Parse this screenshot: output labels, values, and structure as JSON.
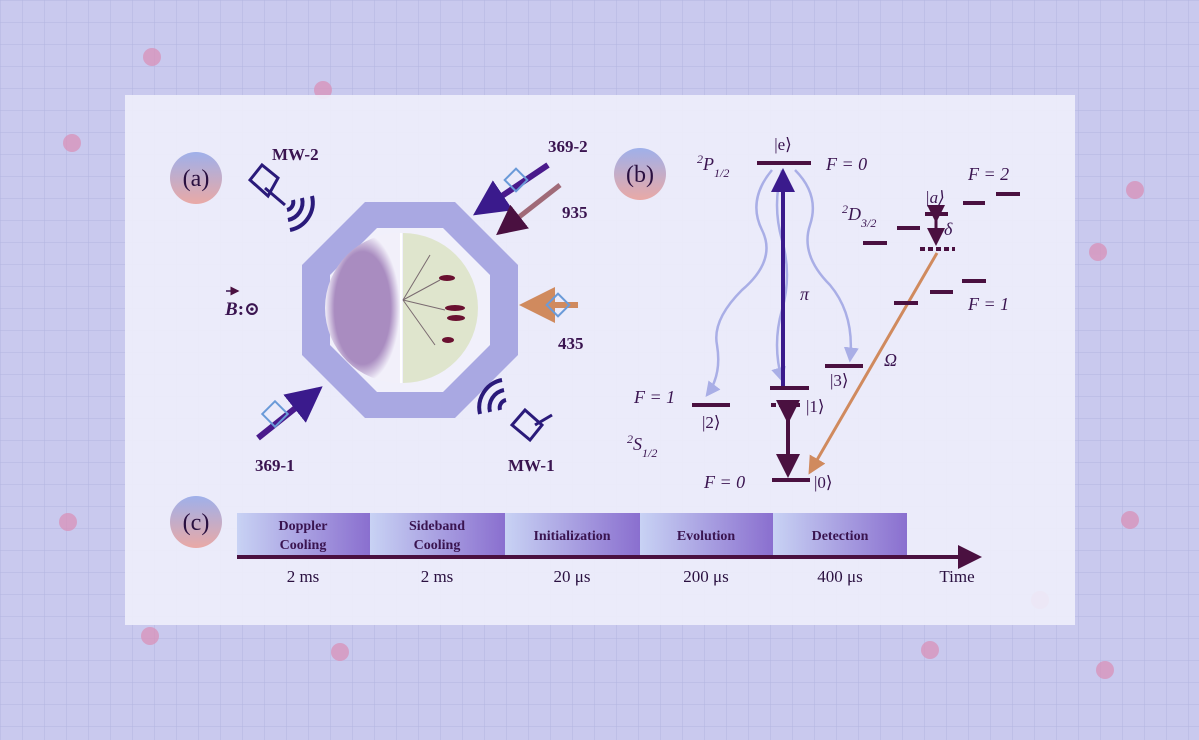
{
  "panel_a": {
    "tag": "(a)",
    "mw2": "MW-2",
    "mw1": "MW-1",
    "beam_369_2": "369-2",
    "beam_935": "935",
    "beam_435": "435",
    "beam_369_1": "369-1",
    "b_field": {
      "symbol": "B",
      "suffix": ":⊙"
    }
  },
  "panel_b": {
    "tag": "(b)",
    "p_term": {
      "sup": "2",
      "main": "P",
      "sub": "1/2"
    },
    "s_term": {
      "sup": "2",
      "main": "S",
      "sub": "1/2"
    },
    "d_term": {
      "sup": "2",
      "main": "D",
      "sub": "3/2"
    },
    "ket_e": "|e⟩",
    "ket_0": "|0⟩",
    "ket_1": "|1⟩",
    "ket_2": "|2⟩",
    "ket_3": "|3⟩",
    "ket_a": "|a⟩",
    "p_F": "F = 0",
    "s_F0": "F = 0",
    "s_F1": "F = 1",
    "d_F2": "F = 2",
    "d_F1": "F = 1",
    "pi": "π",
    "omega": "Ω",
    "delta": "δ"
  },
  "panel_c": {
    "tag": "(c)",
    "axis_label": "Time",
    "stages": [
      {
        "line1": "Doppler",
        "line2": "Cooling",
        "duration": "2 ms"
      },
      {
        "line1": "Sideband",
        "line2": "Cooling",
        "duration": "2 ms"
      },
      {
        "line1": "Initialization",
        "line2": "",
        "duration": "20 μs"
      },
      {
        "line1": "Evolution",
        "line2": "",
        "duration": "200 μs"
      },
      {
        "line1": "Detection",
        "line2": "",
        "duration": "400 μs"
      }
    ]
  },
  "colors": {
    "background": "#c9c9ee",
    "panel": "#eeeefb",
    "dark_purple": "#4a1040",
    "violet": "#4a1a8c",
    "orange": "#d08a5e",
    "light_blue_wave": "#a9aee6"
  }
}
